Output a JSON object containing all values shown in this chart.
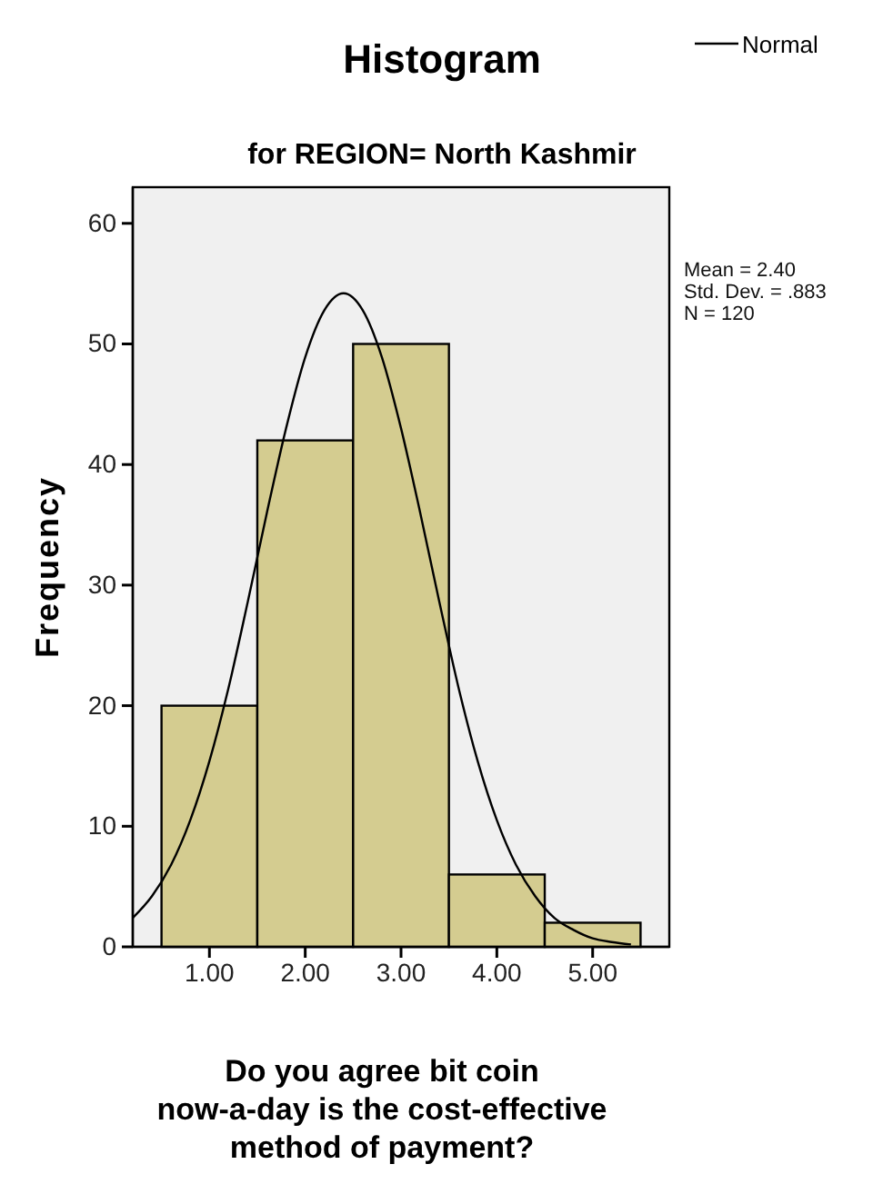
{
  "chart_data": {
    "type": "histogram",
    "title": "Histogram",
    "subtitle": "for REGION= North Kashmir",
    "xlabel": "Do you agree bit coin now-a-day is the cost-effective method of payment?",
    "ylabel": "Frequency",
    "bins": [
      0.5,
      1.5,
      2.5,
      3.5,
      4.5,
      5.5
    ],
    "values": [
      20,
      42,
      50,
      6,
      2
    ],
    "color": "#d4cc90",
    "series": [
      {
        "name": "Normal",
        "type": "line",
        "color": "#000000",
        "x": [
          0.2,
          0.4,
          0.6,
          0.8,
          1.0,
          1.2,
          1.4,
          1.6,
          1.8,
          2.0,
          2.2,
          2.4,
          2.6,
          2.8,
          3.0,
          3.2,
          3.4,
          3.6,
          3.8,
          4.0,
          4.2,
          4.4,
          4.6,
          4.8,
          5.0,
          5.2,
          5.4
        ],
        "values": [
          2.4,
          4.2,
          6.8,
          10.5,
          15.4,
          21.5,
          28.6,
          36.0,
          43.0,
          48.9,
          52.8,
          54.2,
          52.8,
          48.9,
          43.0,
          36.0,
          28.6,
          21.5,
          15.4,
          10.5,
          6.8,
          4.2,
          2.4,
          1.4,
          0.7,
          0.4,
          0.2
        ]
      }
    ],
    "xlim": [
      0.2,
      5.8
    ],
    "ylim": [
      0,
      63
    ],
    "xticks": [
      {
        "value": 1,
        "label": "1.00"
      },
      {
        "value": 2,
        "label": "2.00"
      },
      {
        "value": 3,
        "label": "3.00"
      },
      {
        "value": 4,
        "label": "4.00"
      },
      {
        "value": 5,
        "label": "5.00"
      }
    ],
    "yticks": [
      0,
      10,
      20,
      30,
      40,
      50,
      60
    ],
    "legend": "top right",
    "line_style": "solid",
    "marker": "none",
    "annotations": [
      "Mean = 2.40",
      "Std. Dev. = .883",
      "N = 120"
    ]
  }
}
